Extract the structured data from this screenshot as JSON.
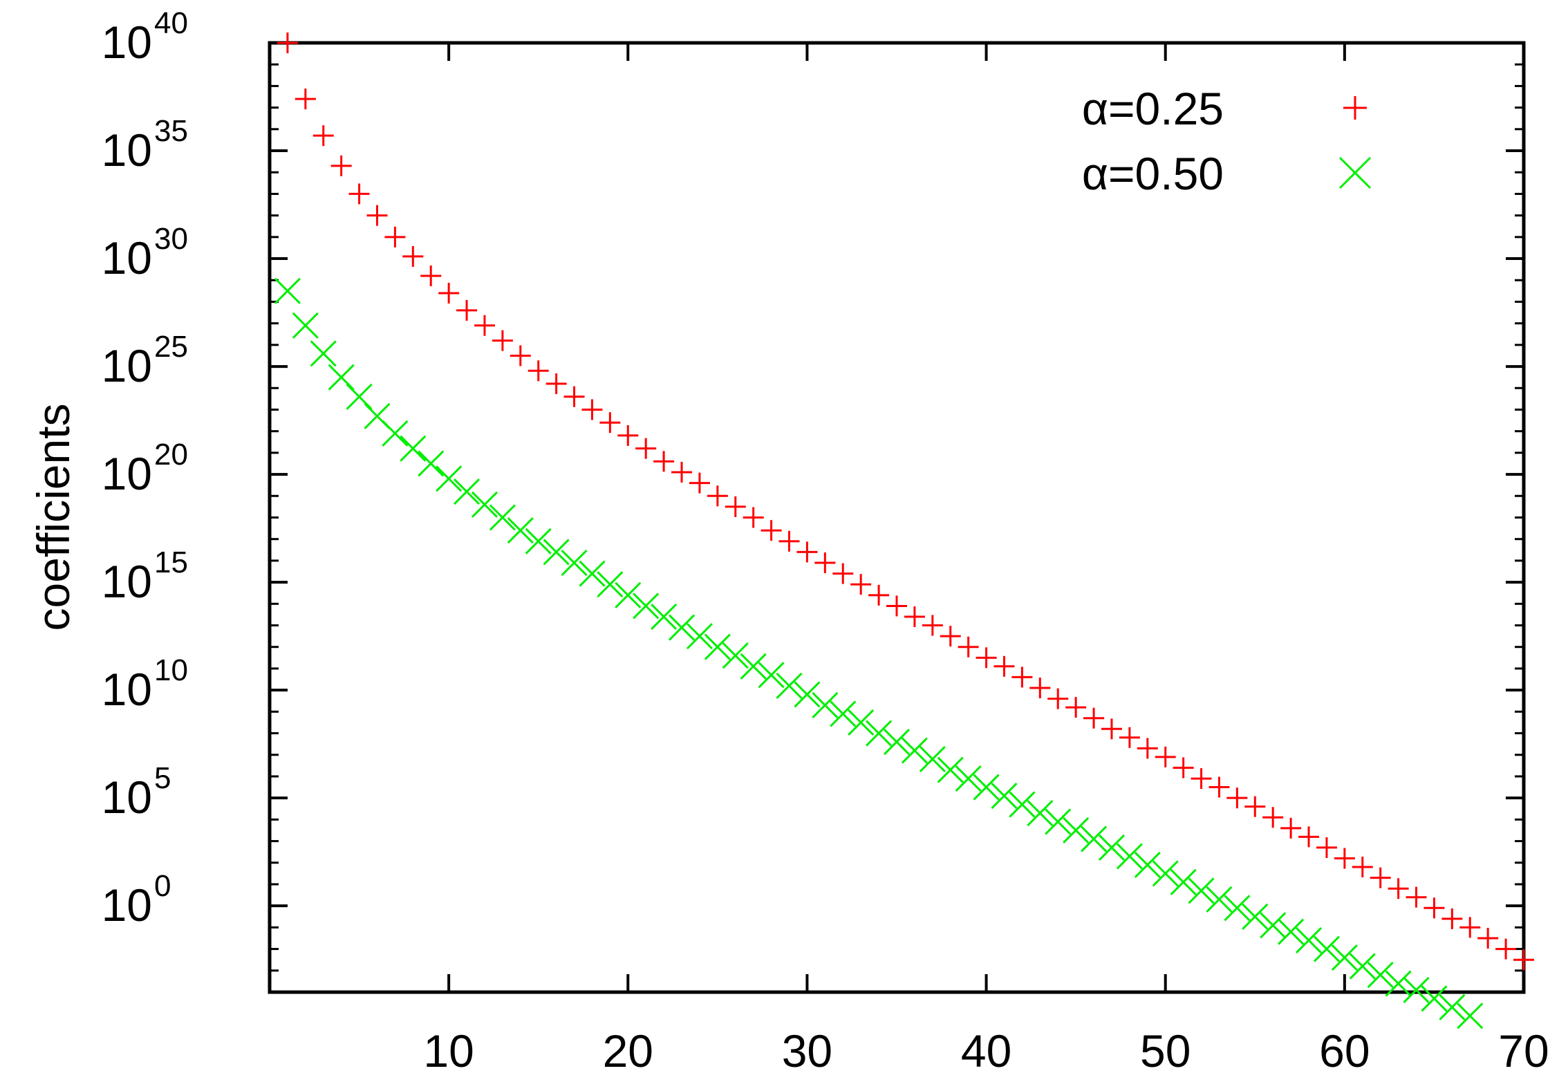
{
  "chart_data": {
    "type": "scatter",
    "title": "",
    "xlabel": "",
    "ylabel": "coefficients",
    "xlim": [
      0,
      70
    ],
    "ylim_log10": [
      -4,
      40
    ],
    "yscale": "log",
    "x_ticks": [
      10,
      20,
      30,
      40,
      50,
      60,
      70
    ],
    "y_ticks": [
      {
        "base": "10",
        "exp": "0",
        "log10": 0
      },
      {
        "base": "10",
        "exp": "5",
        "log10": 5
      },
      {
        "base": "10",
        "exp": "10",
        "log10": 10
      },
      {
        "base": "10",
        "exp": "15",
        "log10": 15
      },
      {
        "base": "10",
        "exp": "20",
        "log10": 20
      },
      {
        "base": "10",
        "exp": "25",
        "log10": 25
      },
      {
        "base": "10",
        "exp": "30",
        "log10": 30
      },
      {
        "base": "10",
        "exp": "35",
        "log10": 35
      },
      {
        "base": "10",
        "exp": "40",
        "log10": 40
      }
    ],
    "grid": false,
    "legend_position": "top-right",
    "series": [
      {
        "name": "α=0.25",
        "marker": "plus",
        "color": "#ff0000",
        "x": [
          1,
          2,
          3,
          4,
          5,
          6,
          7,
          8,
          9,
          10,
          11,
          12,
          13,
          14,
          15,
          16,
          17,
          18,
          19,
          20,
          21,
          22,
          23,
          24,
          25,
          26,
          27,
          28,
          29,
          30,
          31,
          32,
          33,
          34,
          35,
          36,
          37,
          38,
          39,
          40,
          41,
          42,
          43,
          44,
          45,
          46,
          47,
          48,
          49,
          50,
          51,
          52,
          53,
          54,
          55,
          56,
          57,
          58,
          59,
          60,
          61,
          62,
          63,
          64,
          65,
          66,
          67,
          68,
          69,
          70
        ],
        "log10_y": [
          40,
          37.4,
          35.7,
          34.3,
          33.0,
          32.0,
          31.0,
          30.1,
          29.2,
          28.4,
          27.6,
          26.9,
          26.2,
          25.5,
          24.8,
          24.2,
          23.6,
          23.0,
          22.4,
          21.8,
          21.2,
          20.6,
          20.1,
          19.6,
          19.0,
          18.5,
          18.0,
          17.4,
          16.9,
          16.4,
          15.9,
          15.4,
          14.9,
          14.4,
          13.9,
          13.4,
          13.0,
          12.5,
          12.0,
          11.5,
          11.1,
          10.6,
          10.1,
          9.6,
          9.2,
          8.7,
          8.2,
          7.8,
          7.3,
          6.9,
          6.4,
          5.9,
          5.5,
          5.0,
          4.6,
          4.1,
          3.6,
          3.2,
          2.7,
          2.2,
          1.8,
          1.3,
          0.8,
          0.4,
          -0.1,
          -0.6,
          -1.0,
          -1.5,
          -2.0,
          -2.5
        ]
      },
      {
        "name": "α=0.50",
        "marker": "cross",
        "color": "#00ee00",
        "x": [
          1,
          2,
          3,
          4,
          5,
          6,
          7,
          8,
          9,
          10,
          11,
          12,
          13,
          14,
          15,
          16,
          17,
          18,
          19,
          20,
          21,
          22,
          23,
          24,
          25,
          26,
          27,
          28,
          29,
          30,
          31,
          32,
          33,
          34,
          35,
          36,
          37,
          38,
          39,
          40,
          41,
          42,
          43,
          44,
          45,
          46,
          47,
          48,
          49,
          50,
          51,
          52,
          53,
          54,
          55,
          56,
          57,
          58,
          59,
          60,
          61,
          62,
          63,
          64,
          65,
          66,
          67,
          68,
          69,
          70
        ],
        "log10_y": [
          28.5,
          26.9,
          25.6,
          24.5,
          23.6,
          22.7,
          21.9,
          21.2,
          20.5,
          19.8,
          19.2,
          18.6,
          18.0,
          17.4,
          16.9,
          16.4,
          15.9,
          15.4,
          14.9,
          14.4,
          13.9,
          13.4,
          12.9,
          12.5,
          12.0,
          11.6,
          11.1,
          10.7,
          10.2,
          9.8,
          9.3,
          8.9,
          8.5,
          8.0,
          7.6,
          7.2,
          6.8,
          6.3,
          5.9,
          5.5,
          5.1,
          4.7,
          4.3,
          3.9,
          3.5,
          3.1,
          2.7,
          2.3,
          1.9,
          1.5,
          1.1,
          0.7,
          0.3,
          -0.1,
          -0.5,
          -0.9,
          -1.2,
          -1.6,
          -2.0,
          -2.4,
          -2.8,
          -3.2,
          -3.6,
          -3.9,
          -4.3,
          -4.7,
          -5.1,
          -5.5,
          -5.8,
          -6.3
        ]
      }
    ]
  }
}
